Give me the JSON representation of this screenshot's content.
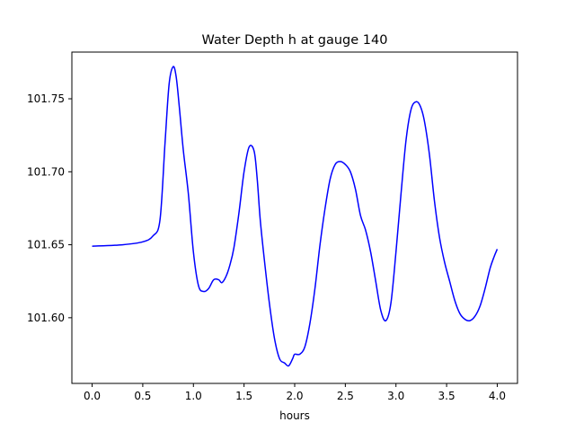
{
  "chart_data": {
    "type": "line",
    "title": "Water Depth h at gauge 140",
    "xlabel": "hours",
    "ylabel": "",
    "xlim": [
      -0.2,
      4.2
    ],
    "ylim": [
      101.555,
      101.782
    ],
    "xticks": [
      0.0,
      0.5,
      1.0,
      1.5,
      2.0,
      2.5,
      3.0,
      3.5,
      4.0
    ],
    "xtick_labels": [
      "0.0",
      "0.5",
      "1.0",
      "1.5",
      "2.0",
      "2.5",
      "3.0",
      "3.5",
      "4.0"
    ],
    "yticks": [
      101.6,
      101.65,
      101.7,
      101.75
    ],
    "ytick_labels": [
      "101.60",
      "101.65",
      "101.70",
      "101.75"
    ],
    "grid": false,
    "series": [
      {
        "color": "#0000ff",
        "x": [
          0.0,
          0.3,
          0.5,
          0.6,
          0.67,
          0.72,
          0.76,
          0.8,
          0.83,
          0.86,
          0.9,
          0.95,
          1.0,
          1.05,
          1.1,
          1.15,
          1.2,
          1.25,
          1.28,
          1.32,
          1.36,
          1.4,
          1.45,
          1.5,
          1.55,
          1.6,
          1.63,
          1.66,
          1.7,
          1.75,
          1.8,
          1.85,
          1.9,
          1.94,
          1.98,
          2.0,
          2.05,
          2.1,
          2.15,
          2.2,
          2.25,
          2.3,
          2.35,
          2.4,
          2.45,
          2.5,
          2.55,
          2.6,
          2.65,
          2.7,
          2.75,
          2.8,
          2.85,
          2.9,
          2.95,
          3.0,
          3.05,
          3.1,
          3.15,
          3.2,
          3.24,
          3.28,
          3.33,
          3.38,
          3.43,
          3.48,
          3.53,
          3.58,
          3.63,
          3.68,
          3.73,
          3.78,
          3.83,
          3.88,
          3.93,
          3.97,
          4.0
        ],
        "y": [
          101.649,
          101.65,
          101.652,
          101.656,
          101.667,
          101.72,
          101.76,
          101.772,
          101.765,
          101.745,
          101.715,
          101.685,
          101.645,
          101.622,
          101.618,
          101.62,
          101.626,
          101.626,
          101.624,
          101.628,
          101.636,
          101.648,
          101.672,
          101.7,
          101.717,
          101.714,
          101.695,
          101.667,
          101.64,
          101.61,
          101.586,
          101.572,
          101.569,
          101.567,
          101.572,
          101.575,
          101.575,
          101.58,
          101.596,
          101.62,
          101.65,
          101.675,
          101.695,
          101.705,
          101.707,
          101.705,
          101.7,
          101.688,
          101.67,
          101.66,
          101.645,
          101.625,
          101.605,
          101.598,
          101.61,
          101.645,
          101.685,
          101.722,
          101.743,
          101.748,
          101.745,
          101.735,
          101.712,
          101.68,
          101.655,
          101.638,
          101.625,
          101.612,
          101.603,
          101.599,
          101.598,
          101.601,
          101.608,
          101.62,
          101.634,
          101.642,
          101.647
        ]
      }
    ]
  }
}
